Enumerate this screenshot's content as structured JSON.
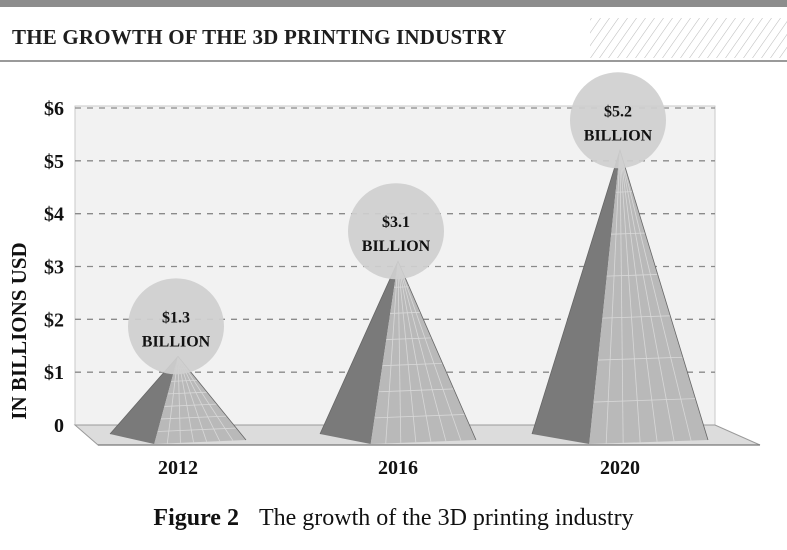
{
  "header": {
    "title": "THE GROWTH OF THE 3D PRINTING INDUSTRY"
  },
  "caption": {
    "label": "Figure 2",
    "text": "The growth of the 3D printing industry"
  },
  "colors": {
    "pyramid_light": "#b9b9b9",
    "pyramid_dark": "#7a7a7a",
    "bubble": "#cfcfcf",
    "grid": "#8a8a8a",
    "text": "#111111"
  },
  "chart_data": {
    "type": "bar",
    "title": "THE GROWTH OF THE 3D PRINTING INDUSTRY",
    "ylabel": "IN BILLIONS USD",
    "xlabel": "",
    "categories": [
      "2012",
      "2016",
      "2020"
    ],
    "values": [
      1.3,
      3.1,
      5.2
    ],
    "data_labels": [
      [
        "$1.3",
        "BILLION"
      ],
      [
        "$3.1",
        "BILLION"
      ],
      [
        "$5.2",
        "BILLION"
      ]
    ],
    "ylim": [
      0,
      6
    ],
    "yticks": [
      "0",
      "$1",
      "$2",
      "$3",
      "$4",
      "$5",
      "$6"
    ],
    "grid": true,
    "marker": "pyramid"
  }
}
